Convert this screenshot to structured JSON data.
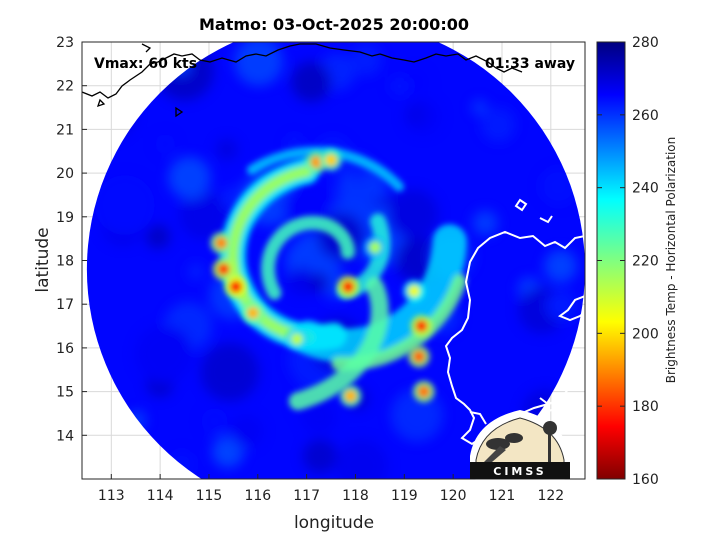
{
  "chart_data": {
    "type": "heatmap",
    "title": "Matmo: 03-Oct-2025 20:00:00",
    "xlabel": "longitude",
    "ylabel": "latitude",
    "xlim": [
      112.4,
      122.7
    ],
    "ylim": [
      13.0,
      23.0
    ],
    "xticks": [
      113,
      114,
      115,
      116,
      117,
      118,
      119,
      120,
      121,
      122
    ],
    "yticks": [
      14,
      15,
      16,
      17,
      18,
      19,
      20,
      21,
      22,
      23
    ],
    "grid": true,
    "colorbar": {
      "label": "Brightness Temp - Horizontal Polarization",
      "range": [
        160,
        280
      ],
      "ticks": [
        160,
        180,
        200,
        220,
        240,
        260,
        280
      ],
      "colormap": "jet"
    },
    "annotations": {
      "vmax": "Vmax: 60 kts",
      "time_offset": "01:33 away"
    },
    "storm_center": {
      "lon": 117.3,
      "lat": 18.0
    },
    "swath": {
      "center_lon": 117.6,
      "center_lat": 17.8,
      "radius_deg": 5.1
    },
    "background_temp": 265,
    "convective_cells": [
      {
        "lon": 115.55,
        "lat": 17.4,
        "temp": 175
      },
      {
        "lon": 115.3,
        "lat": 17.8,
        "temp": 182
      },
      {
        "lon": 115.25,
        "lat": 18.4,
        "temp": 190
      },
      {
        "lon": 115.9,
        "lat": 16.8,
        "temp": 195
      },
      {
        "lon": 117.85,
        "lat": 17.4,
        "temp": 178
      },
      {
        "lon": 119.35,
        "lat": 16.5,
        "temp": 180
      },
      {
        "lon": 119.3,
        "lat": 15.8,
        "temp": 186
      },
      {
        "lon": 119.4,
        "lat": 15.0,
        "temp": 188
      },
      {
        "lon": 117.9,
        "lat": 14.9,
        "temp": 195
      },
      {
        "lon": 117.2,
        "lat": 20.25,
        "temp": 192
      },
      {
        "lon": 117.5,
        "lat": 20.3,
        "temp": 198
      },
      {
        "lon": 119.2,
        "lat": 17.3,
        "temp": 205
      },
      {
        "lon": 116.8,
        "lat": 16.2,
        "temp": 212
      },
      {
        "lon": 118.4,
        "lat": 18.3,
        "temp": 215
      }
    ]
  },
  "logo": {
    "text": "CIMSS"
  }
}
